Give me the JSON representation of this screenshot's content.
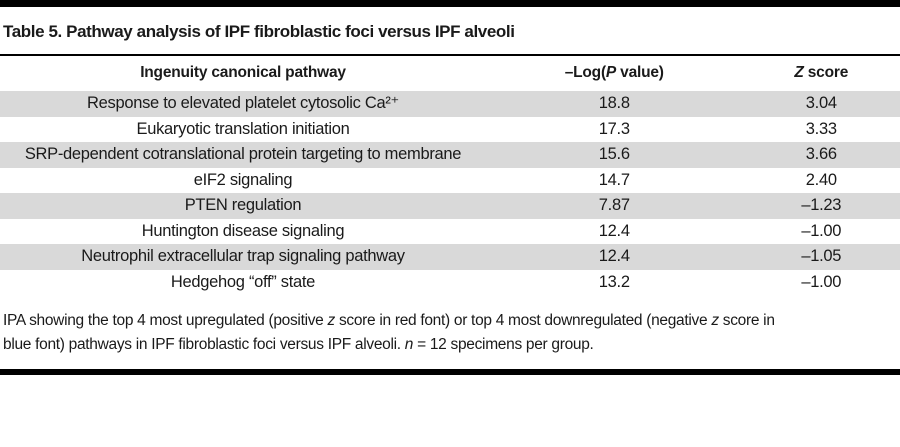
{
  "page": {
    "background_color": "#ffffff",
    "rule_color": "#000000",
    "text_color": "#1a1a1a",
    "stripe_color": "#d9d9d9"
  },
  "title": "Table 5. Pathway analysis of IPF fibroblastic foci versus IPF alveoli",
  "table": {
    "columns": [
      {
        "id": "pathway",
        "label_segments": [
          {
            "text": "Ingenuity canonical pathway"
          }
        ]
      },
      {
        "id": "logp",
        "label_segments": [
          {
            "text": "–Log("
          },
          {
            "text": "P",
            "italic": true
          },
          {
            "text": " value)"
          }
        ]
      },
      {
        "id": "zscore",
        "label_segments": [
          {
            "text": "Z",
            "italic": true
          },
          {
            "text": " score"
          }
        ]
      }
    ],
    "rows": [
      {
        "pathway": "Response to elevated platelet cytosolic Ca²⁺",
        "logp": "18.8",
        "zscore": "3.04"
      },
      {
        "pathway": "Eukaryotic translation initiation",
        "logp": "17.3",
        "zscore": "3.33"
      },
      {
        "pathway": "SRP-dependent cotranslational protein targeting to membrane",
        "logp": "15.6",
        "zscore": "3.66"
      },
      {
        "pathway": "eIF2 signaling",
        "logp": "14.7",
        "zscore": "2.40"
      },
      {
        "pathway": "PTEN regulation",
        "logp": "7.87",
        "zscore": "–1.23"
      },
      {
        "pathway": "Huntington disease signaling",
        "logp": "12.4",
        "zscore": "–1.00"
      },
      {
        "pathway": "Neutrophil extracellular trap signaling pathway",
        "logp": "12.4",
        "zscore": "–1.05"
      },
      {
        "pathway": "Hedgehog “off” state",
        "logp": "13.2",
        "zscore": "–1.00"
      }
    ]
  },
  "footnote_segments": [
    {
      "text": "IPA showing the top 4 most upregulated (positive "
    },
    {
      "text": "z",
      "italic": true
    },
    {
      "text": " score in red font) or top 4 most downregulated (negative "
    },
    {
      "text": "z",
      "italic": true
    },
    {
      "text": " score in"
    },
    {
      "break": true
    },
    {
      "text": "blue font) pathways in IPF fibroblastic foci versus IPF alveoli. "
    },
    {
      "text": "n",
      "italic": true
    },
    {
      "text": " = 12 specimens per group."
    }
  ]
}
